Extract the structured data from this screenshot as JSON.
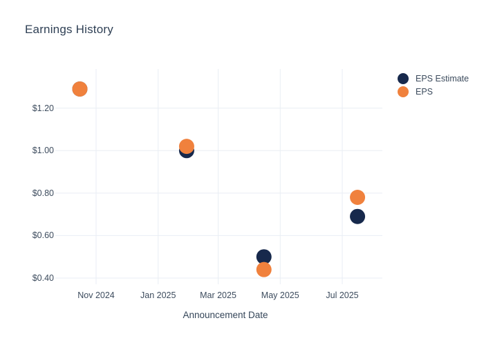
{
  "chart_data": {
    "type": "scatter",
    "title": "Earnings History",
    "xlabel": "Announcement Date",
    "ylabel": "",
    "grid": true,
    "legend_position": "top-right-outside",
    "x_tick_labels": [
      "Nov 2024",
      "Jan 2025",
      "Mar 2025",
      "May 2025",
      "Jul 2025"
    ],
    "x_tick_dates": [
      "2024-11-01",
      "2025-01-01",
      "2025-03-01",
      "2025-05-01",
      "2025-07-01"
    ],
    "y_tick_labels": [
      "$1.20",
      "$1.00",
      "$0.80",
      "$0.60",
      "$0.40"
    ],
    "y_tick_values": [
      1.2,
      1.0,
      0.8,
      0.6,
      0.4
    ],
    "ylim": [
      0.37,
      1.38
    ],
    "xlim": [
      "2024-09-22",
      "2025-08-09"
    ],
    "series": [
      {
        "name": "EPS Estimate",
        "color": "#17294C",
        "points": [
          {
            "date": "2024-10-16",
            "value": 1.29
          },
          {
            "date": "2025-01-29",
            "value": 1.0
          },
          {
            "date": "2025-04-15",
            "value": 0.5
          },
          {
            "date": "2025-07-16",
            "value": 0.69
          }
        ]
      },
      {
        "name": "EPS",
        "color": "#F0813D",
        "points": [
          {
            "date": "2024-10-16",
            "value": 1.29
          },
          {
            "date": "2025-01-29",
            "value": 1.02
          },
          {
            "date": "2025-04-15",
            "value": 0.44
          },
          {
            "date": "2025-07-16",
            "value": 0.78
          }
        ]
      }
    ],
    "colors": {
      "grid": "#E9EEF4",
      "title_text": "#2E3F54",
      "tick_text": "#3C4B5D",
      "background": "#FFFFFF"
    }
  }
}
